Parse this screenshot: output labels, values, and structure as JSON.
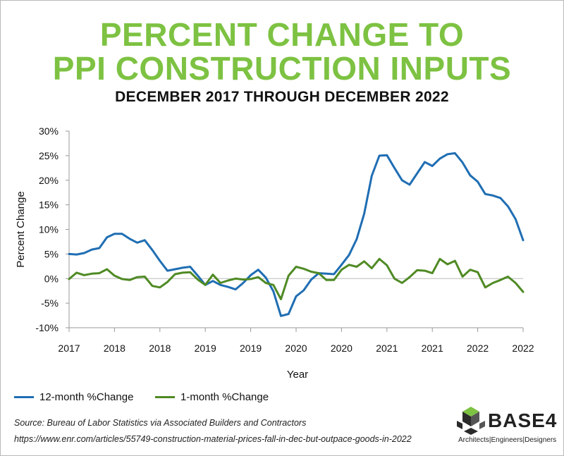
{
  "header": {
    "title_line1": "PERCENT CHANGE TO",
    "title_line2": "PPI CONSTRUCTION INPUTS",
    "subtitle": "DECEMBER 2017 THROUGH DECEMBER 2022"
  },
  "legend": {
    "series1": "12-month  %Change",
    "series2": "1-month  %Change"
  },
  "footer": {
    "source": "Source: Bureau of Labor Statistics via Associated Builders and Contractors",
    "url": "https://www.enr.com/articles/55749-construction-material-prices-fall-in-dec-but-outpace-goods-in-2022"
  },
  "logo": {
    "name": "BASE4",
    "tagline": "Architects|Engineers|Designers"
  },
  "colors": {
    "title": "#7dc242",
    "series1": "#1f6eb3",
    "series2": "#4f8a24",
    "grid": "#cccccc"
  },
  "chart_data": {
    "type": "line",
    "title": "PERCENT CHANGE TO PPI CONSTRUCTION INPUTS",
    "subtitle": "DECEMBER 2017 THROUGH DECEMBER 2022",
    "xlabel": "Year",
    "ylabel": "Percent Change",
    "ylim": [
      -10,
      30
    ],
    "yticks": [
      "-10%",
      "-5%",
      "0%",
      "5%",
      "10%",
      "15%",
      "20%",
      "25%",
      "30%"
    ],
    "yticks_values": [
      -10,
      -5,
      0,
      5,
      10,
      15,
      20,
      25,
      30
    ],
    "xticks": [
      "2017",
      "2018",
      "2018",
      "2019",
      "2019",
      "2020",
      "2020",
      "2021",
      "2021",
      "2022",
      "2022"
    ],
    "grid": "horizontal-none",
    "legend_position": "bottom-left",
    "series": [
      {
        "name": "12-month  %Change",
        "values": [
          5.0,
          4.9,
          5.2,
          5.9,
          6.2,
          8.4,
          9.1,
          9.1,
          8.1,
          7.3,
          7.8,
          5.8,
          3.6,
          1.6,
          1.9,
          2.2,
          2.4,
          0.6,
          -1.3,
          -0.5,
          -1.3,
          -1.7,
          -2.2,
          -0.9,
          0.7,
          1.8,
          0.2,
          -2.6,
          -7.6,
          -7.2,
          -3.6,
          -2.4,
          -0.2,
          1.1,
          1.0,
          0.9,
          2.8,
          4.8,
          8.0,
          13.2,
          20.9,
          25.0,
          25.1,
          22.5,
          20.0,
          19.1,
          21.4,
          23.7,
          22.9,
          24.4,
          25.3,
          25.5,
          23.6,
          21.0,
          19.7,
          17.2,
          16.9,
          16.4,
          14.7,
          12.1,
          7.8
        ]
      },
      {
        "name": "1-month  %Change",
        "values": [
          -0.1,
          1.2,
          0.7,
          1.0,
          1.1,
          1.9,
          0.6,
          -0.1,
          -0.3,
          0.3,
          0.4,
          -1.5,
          -1.8,
          -0.7,
          0.9,
          1.2,
          1.3,
          -0.2,
          -1.3,
          0.8,
          -0.9,
          -0.4,
          0.0,
          -0.2,
          -0.1,
          0.3,
          -0.9,
          -1.3,
          -4.2,
          0.6,
          2.4,
          2.0,
          1.4,
          1.1,
          -0.3,
          -0.3,
          1.8,
          2.8,
          2.4,
          3.5,
          2.1,
          4.0,
          2.7,
          0.0,
          -0.9,
          0.3,
          1.7,
          1.6,
          1.1,
          4.0,
          2.9,
          3.6,
          0.4,
          1.8,
          1.3,
          -1.8,
          -0.9,
          -0.3,
          0.4,
          -0.9,
          -2.7
        ]
      }
    ]
  }
}
